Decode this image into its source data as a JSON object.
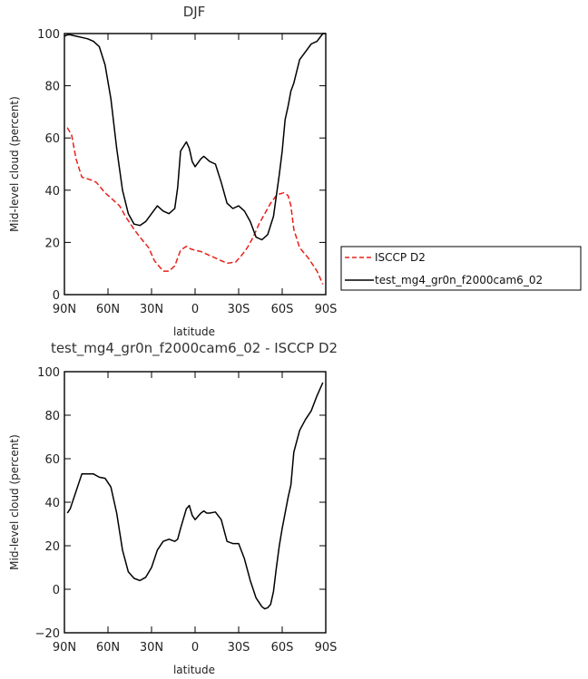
{
  "chart_data": [
    {
      "type": "line",
      "title": "DJF",
      "xlabel": "latitude",
      "ylabel": "Mid-level cloud (percent)",
      "xlim": [
        90,
        -90
      ],
      "ylim": [
        0,
        100
      ],
      "xticks": [
        90,
        60,
        30,
        0,
        -30,
        -60,
        -90
      ],
      "xtick_labels": [
        "90N",
        "60N",
        "30N",
        "0",
        "30S",
        "60S",
        "90S"
      ],
      "yticks": [
        0,
        20,
        40,
        60,
        80,
        100
      ],
      "ytick_labels": [
        "0",
        "20",
        "40",
        "60",
        "80",
        "100"
      ],
      "legend_position": "right",
      "series": [
        {
          "name": "ISCCP D2",
          "color": "#e8201a",
          "dash": "dashed",
          "x": [
            88,
            85,
            82,
            78,
            72,
            68,
            62,
            58,
            52,
            48,
            42,
            38,
            32,
            28,
            22,
            18,
            14,
            10,
            6,
            3,
            0,
            -4,
            -10,
            -16,
            -22,
            -28,
            -32,
            -36,
            -40,
            -44,
            -48,
            -52,
            -56,
            -58,
            -61,
            -64,
            -66,
            -68,
            -72,
            -78,
            -84,
            -88
          ],
          "y": [
            64,
            61,
            52,
            45,
            44,
            43,
            39,
            37,
            34,
            30,
            25,
            22,
            18,
            13,
            9,
            9,
            11,
            17,
            18.5,
            17.5,
            17,
            16.5,
            15,
            13.5,
            12,
            12.5,
            15,
            18,
            22,
            27,
            31,
            35,
            38,
            38.5,
            39,
            38,
            34,
            25,
            18,
            14,
            9,
            4
          ]
        },
        {
          "name": "test_mg4_gr0n_f2000cam6_02",
          "color": "#000000",
          "dash": "solid",
          "x": [
            90,
            88,
            86,
            82,
            78,
            74,
            70,
            66,
            62,
            58,
            54,
            50,
            46,
            42,
            38,
            34,
            30,
            26,
            22,
            18,
            14,
            12,
            10,
            6,
            4,
            2,
            0,
            -4,
            -6,
            -8,
            -10,
            -14,
            -18,
            -22,
            -26,
            -30,
            -34,
            -38,
            -42,
            -46,
            -50,
            -54,
            -58,
            -60,
            -62,
            -64,
            -66,
            -68,
            -72,
            -76,
            -80,
            -84,
            -88,
            -90
          ],
          "y": [
            99,
            99.5,
            99.5,
            99,
            98.5,
            98,
            97,
            95,
            88,
            75,
            56,
            40,
            31,
            27,
            26.5,
            28,
            31,
            34,
            32,
            31,
            33,
            41,
            55,
            58.5,
            56,
            51,
            49,
            52,
            53,
            52,
            51,
            50,
            43,
            35,
            33,
            34,
            32,
            28,
            22,
            21,
            23,
            30,
            46,
            55,
            67,
            72,
            78,
            81,
            90,
            93,
            96,
            97,
            100,
            100
          ]
        }
      ]
    },
    {
      "type": "line",
      "title": "test_mg4_gr0n_f2000cam6_02 - ISCCP D2",
      "xlabel": "latitude",
      "ylabel": "Mid-level cloud (percent)",
      "xlim": [
        90,
        -90
      ],
      "ylim": [
        -20,
        100
      ],
      "xticks": [
        90,
        60,
        30,
        0,
        -30,
        -60,
        -90
      ],
      "xtick_labels": [
        "90N",
        "60N",
        "30N",
        "0",
        "30S",
        "60S",
        "90S"
      ],
      "yticks": [
        -20,
        0,
        20,
        40,
        60,
        80,
        100
      ],
      "ytick_labels": [
        "−20",
        "0",
        "20",
        "40",
        "60",
        "80",
        "100"
      ],
      "series": [
        {
          "color": "#000000",
          "dash": "solid",
          "x": [
            88,
            86,
            82,
            78,
            74,
            70,
            66,
            62,
            58,
            54,
            50,
            46,
            42,
            38,
            34,
            30,
            26,
            22,
            18,
            14,
            12,
            10,
            6,
            4,
            2,
            0,
            -4,
            -6,
            -8,
            -10,
            -14,
            -18,
            -22,
            -26,
            -30,
            -34,
            -38,
            -42,
            -46,
            -48,
            -50,
            -52,
            -54,
            -56,
            -58,
            -60,
            -62,
            -64,
            -66,
            -68,
            -72,
            -76,
            -80,
            -84,
            -88
          ],
          "y": [
            35,
            37,
            45,
            53,
            53,
            53,
            51.5,
            51,
            47,
            35,
            18,
            8,
            5,
            4,
            5.5,
            10,
            18,
            22,
            23,
            22,
            23,
            28,
            37,
            38.5,
            34,
            32,
            35,
            36,
            35,
            35,
            35.5,
            32,
            22,
            21,
            21,
            14,
            4,
            -4,
            -8,
            -9,
            -8.5,
            -7,
            -1,
            10,
            20,
            28,
            35,
            42,
            48,
            63,
            73,
            78,
            82,
            89,
            95
          ]
        }
      ]
    }
  ]
}
